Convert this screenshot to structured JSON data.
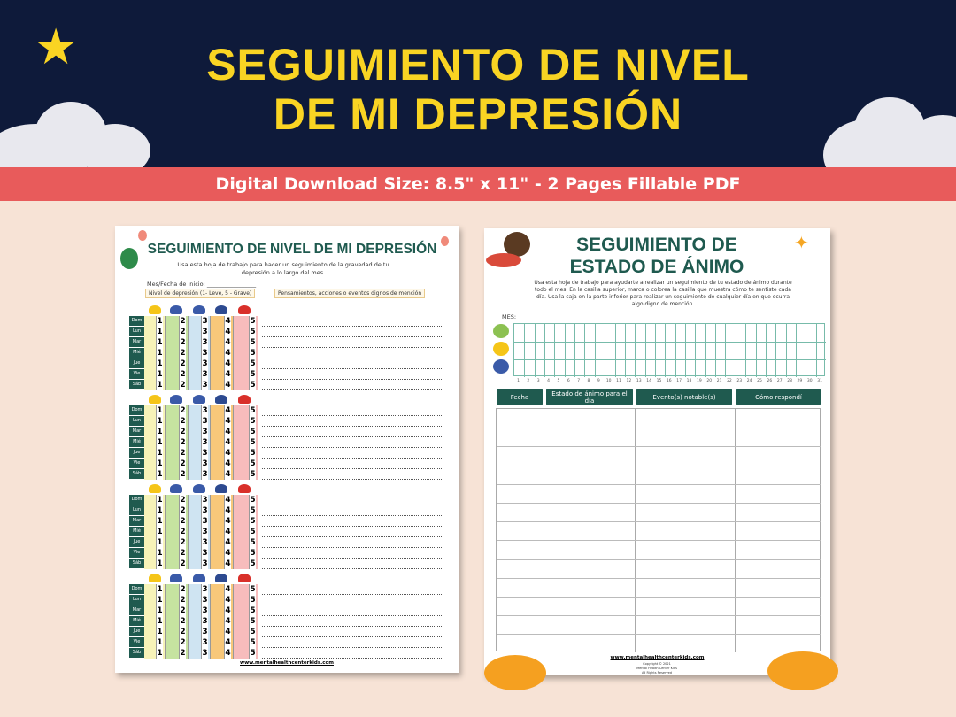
{
  "banner": {
    "title_line1": "SEGUIMIENTO DE NIVEL",
    "title_line2": "DE MI DEPRESIÓN",
    "subtitle": "Digital Download Size: 8.5\" x 11\" - 2 Pages Fillable PDF"
  },
  "colors": {
    "navy": "#0e1a3a",
    "yellow": "#f9d423",
    "red_band": "#e85b5b",
    "teal": "#1f5a4f",
    "background": "#f7e3d6"
  },
  "page1": {
    "title": "SEGUIMIENTO DE NIVEL DE MI DEPRESIÓN",
    "intro": "Usa esta hoja de trabajo para hacer un seguimiento de la gravedad de tu depresión a lo largo del mes.",
    "start_label": "Mes/Fecha de inicio: _________________",
    "level_label": "Nivel de depresión (1- Leve, 5 - Grave)",
    "notes_label": "Pensamientos, acciones o eventos dignos de mención",
    "days": [
      "Dom",
      "Lun",
      "Mar",
      "Mié",
      "Jue",
      "Vie",
      "Sáb"
    ],
    "levels": [
      "1",
      "2",
      "3",
      "4",
      "5"
    ],
    "level_colors": [
      "#f7f3b8",
      "#c6e3a0",
      "#cfe4f2",
      "#f8c87a",
      "#f7bcbc"
    ],
    "weeks": 4,
    "footer": "www.mentalhealthcenterkids.com"
  },
  "page2": {
    "title_line1": "SEGUIMIENTO DE",
    "title_line2": "ESTADO DE ÁNIMO",
    "intro": "Usa esta hoja de trabajo para ayudarte a realizar un seguimiento de tu estado de ánimo durante todo el mes. En la casilla superior, marca o colorea la casilla que muestra cómo te sentiste cada día. Usa la caja en la parte inferior para realizar un seguimiento de cualquier día en que ocurra algo digno de mención.",
    "month_label": "MES: ______________________",
    "day_count": 31,
    "columns": [
      "Fecha",
      "Estado de ánimo para el día",
      "Evento(s) notable(s)",
      "Cómo respondí"
    ],
    "footer": "www.mentalhealthcenterkids.com",
    "copyright": [
      "Copyright © 2021",
      "Mental Health Center Kids",
      "All Rights Reserved"
    ]
  }
}
